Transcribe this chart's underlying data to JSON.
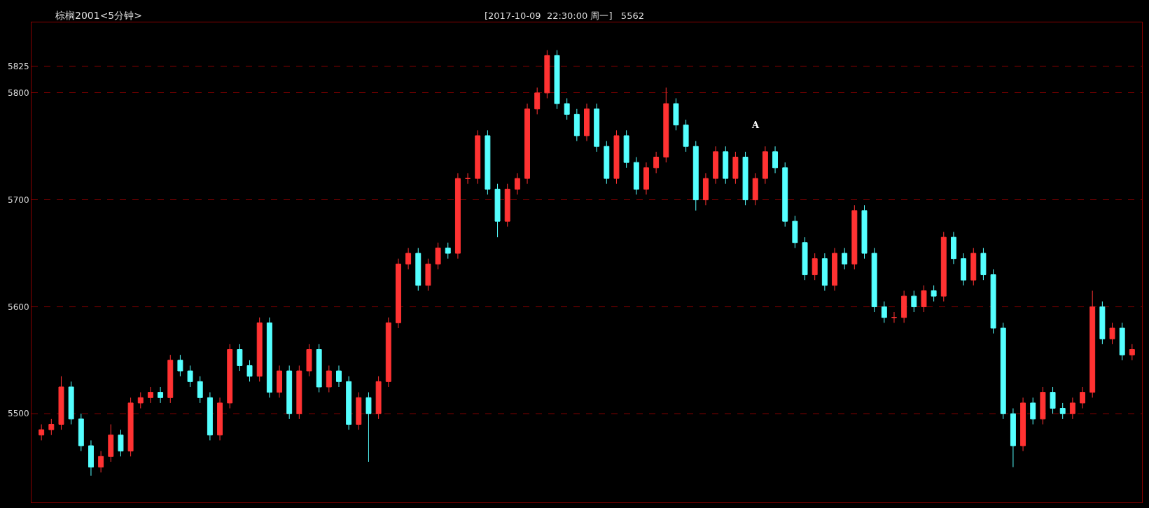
{
  "chart_data": {
    "type": "candlestick",
    "title": "棕榈2001<5分钟>",
    "subtitle": "[2017-10-09  22:30:00 周一]   5562",
    "annotations": [
      "A"
    ],
    "categories": [
      null,
      null,
      null,
      null,
      null,
      null,
      null,
      null,
      null,
      null,
      null,
      null,
      null,
      null,
      null,
      null,
      null,
      null,
      null,
      null,
      null,
      null,
      null,
      null,
      null,
      null,
      null,
      null,
      null,
      null,
      null,
      null,
      null,
      null,
      null,
      null,
      null,
      null,
      null,
      null,
      null,
      null,
      null,
      null,
      null,
      null,
      null,
      null,
      null,
      null,
      null,
      null,
      null,
      null,
      null,
      null,
      null,
      null,
      null,
      null,
      null,
      null,
      null,
      null,
      null,
      null,
      null,
      null,
      null,
      null,
      null,
      null,
      null,
      null,
      null,
      null,
      null,
      null,
      null,
      null,
      null,
      null,
      null,
      null,
      null,
      null,
      null,
      null,
      null,
      null,
      null,
      null,
      null,
      null,
      null,
      null,
      null,
      null,
      null,
      null,
      null,
      null,
      null,
      null,
      null,
      null,
      null,
      null,
      null,
      null,
      null
    ],
    "colors": [
      "#ff3232",
      "#ff3232",
      "#ff3232",
      "#54ffff",
      "#54ffff",
      "#54ffff",
      "#ff3232",
      "#ff3232",
      "#54ffff",
      "#ff3232",
      "#ff3232",
      "#ff3232",
      "#54ffff",
      "#ff3232",
      "#54ffff",
      "#54ffff",
      "#54ffff",
      "#54ffff",
      "#ff3232",
      "#ff3232",
      "#54ffff",
      "#54ffff",
      "#ff3232",
      "#54ffff",
      "#ff3232",
      "#54ffff",
      "#ff3232",
      "#ff3232",
      "#54ffff",
      "#ff3232",
      "#54ffff",
      "#54ffff",
      "#ff3232",
      "#54ffff",
      "#ff3232",
      "#ff3232",
      "#ff3232",
      "#ff3232",
      "#54ffff",
      "#ff3232",
      "#ff3232",
      "#54ffff",
      "#ff3232",
      "#ff3232",
      "#ff3232",
      "#54ffff",
      "#54ffff",
      "#ff3232",
      "#ff3232",
      "#ff3232",
      "#ff3232",
      "#ff3232",
      "#54ffff",
      "#54ffff",
      "#54ffff",
      "#ff3232",
      "#54ffff",
      "#54ffff",
      "#ff3232",
      "#54ffff",
      "#54ffff",
      "#ff3232",
      "#ff3232",
      "#ff3232",
      "#54ffff",
      "#54ffff",
      "#54ffff",
      "#ff3232",
      "#ff3232",
      "#54ffff",
      "#ff3232",
      "#54ffff",
      "#ff3232",
      "#ff3232",
      "#54ffff",
      "#54ffff",
      "#54ffff",
      "#54ffff",
      "#ff3232",
      "#54ffff",
      "#ff3232",
      "#54ffff",
      "#ff3232",
      "#54ffff",
      "#54ffff",
      "#54ffff",
      "#ff3232",
      "#ff3232",
      "#54ffff",
      "#ff3232",
      "#54ffff",
      "#ff3232",
      "#54ffff",
      "#54ffff",
      "#ff3232",
      "#54ffff",
      "#54ffff",
      "#54ffff",
      "#54ffff",
      "#ff3232",
      "#54ffff",
      "#ff3232",
      "#54ffff",
      "#54ffff",
      "#ff3232",
      "#ff3232",
      "#ff3232",
      "#54ffff",
      "#ff3232",
      "#54ffff",
      "#ff3232"
    ],
    "ohlc": [
      [
        5480,
        5490,
        5475,
        5485
      ],
      [
        5485,
        5495,
        5480,
        5490
      ],
      [
        5490,
        5535,
        5485,
        5525
      ],
      [
        5525,
        5530,
        5490,
        5495
      ],
      [
        5495,
        5500,
        5465,
        5470
      ],
      [
        5470,
        5475,
        5442,
        5450
      ],
      [
        5450,
        5465,
        5445,
        5460
      ],
      [
        5460,
        5490,
        5455,
        5480
      ],
      [
        5480,
        5485,
        5460,
        5465
      ],
      [
        5465,
        5515,
        5460,
        5510
      ],
      [
        5510,
        5520,
        5505,
        5515
      ],
      [
        5515,
        5525,
        5510,
        5520
      ],
      [
        5520,
        5525,
        5510,
        5515
      ],
      [
        5515,
        5555,
        5510,
        5550
      ],
      [
        5550,
        5555,
        5535,
        5540
      ],
      [
        5540,
        5545,
        5525,
        5530
      ],
      [
        5530,
        5535,
        5510,
        5515
      ],
      [
        5515,
        5520,
        5475,
        5480
      ],
      [
        5480,
        5515,
        5475,
        5510
      ],
      [
        5510,
        5565,
        5505,
        5560
      ],
      [
        5560,
        5565,
        5540,
        5545
      ],
      [
        5545,
        5550,
        5530,
        5535
      ],
      [
        5535,
        5590,
        5530,
        5585
      ],
      [
        5585,
        5590,
        5515,
        5520
      ],
      [
        5520,
        5545,
        5515,
        5540
      ],
      [
        5540,
        5545,
        5495,
        5500
      ],
      [
        5500,
        5545,
        5495,
        5540
      ],
      [
        5540,
        5565,
        5535,
        5560
      ],
      [
        5560,
        5565,
        5520,
        5525
      ],
      [
        5525,
        5545,
        5520,
        5540
      ],
      [
        5540,
        5545,
        5525,
        5530
      ],
      [
        5530,
        5535,
        5485,
        5490
      ],
      [
        5490,
        5520,
        5485,
        5515
      ],
      [
        5515,
        5520,
        5455,
        5500
      ],
      [
        5500,
        5535,
        5495,
        5530
      ],
      [
        5530,
        5590,
        5525,
        5585
      ],
      [
        5585,
        5645,
        5580,
        5640
      ],
      [
        5640,
        5655,
        5635,
        5650
      ],
      [
        5650,
        5655,
        5615,
        5620
      ],
      [
        5620,
        5645,
        5615,
        5640
      ],
      [
        5640,
        5660,
        5635,
        5655
      ],
      [
        5655,
        5660,
        5645,
        5650
      ],
      [
        5650,
        5725,
        5645,
        5720
      ],
      [
        5720,
        5725,
        5715,
        5720
      ],
      [
        5720,
        5765,
        5715,
        5760
      ],
      [
        5760,
        5765,
        5705,
        5710
      ],
      [
        5710,
        5715,
        5665,
        5680
      ],
      [
        5680,
        5715,
        5675,
        5710
      ],
      [
        5710,
        5725,
        5705,
        5720
      ],
      [
        5720,
        5790,
        5715,
        5785
      ],
      [
        5785,
        5805,
        5780,
        5800
      ],
      [
        5800,
        5840,
        5795,
        5835
      ],
      [
        5835,
        5840,
        5785,
        5790
      ],
      [
        5790,
        5795,
        5775,
        5780
      ],
      [
        5780,
        5785,
        5755,
        5760
      ],
      [
        5760,
        5790,
        5755,
        5785
      ],
      [
        5785,
        5790,
        5745,
        5750
      ],
      [
        5750,
        5755,
        5715,
        5720
      ],
      [
        5720,
        5765,
        5715,
        5760
      ],
      [
        5760,
        5765,
        5730,
        5735
      ],
      [
        5735,
        5740,
        5705,
        5710
      ],
      [
        5710,
        5735,
        5705,
        5730
      ],
      [
        5730,
        5745,
        5725,
        5740
      ],
      [
        5740,
        5805,
        5735,
        5790
      ],
      [
        5790,
        5795,
        5765,
        5770
      ],
      [
        5770,
        5775,
        5745,
        5750
      ],
      [
        5750,
        5755,
        5690,
        5700
      ],
      [
        5700,
        5725,
        5695,
        5720
      ],
      [
        5720,
        5750,
        5715,
        5745
      ],
      [
        5745,
        5750,
        5715,
        5720
      ],
      [
        5720,
        5745,
        5715,
        5740
      ],
      [
        5740,
        5745,
        5695,
        5700
      ],
      [
        5700,
        5725,
        5695,
        5720
      ],
      [
        5720,
        5750,
        5715,
        5745
      ],
      [
        5745,
        5750,
        5725,
        5730
      ],
      [
        5730,
        5735,
        5675,
        5680
      ],
      [
        5680,
        5685,
        5655,
        5660
      ],
      [
        5660,
        5665,
        5625,
        5630
      ],
      [
        5630,
        5650,
        5625,
        5645
      ],
      [
        5645,
        5650,
        5615,
        5620
      ],
      [
        5620,
        5655,
        5615,
        5650
      ],
      [
        5650,
        5655,
        5635,
        5640
      ],
      [
        5640,
        5695,
        5635,
        5690
      ],
      [
        5690,
        5695,
        5645,
        5650
      ],
      [
        5650,
        5655,
        5595,
        5600
      ],
      [
        5600,
        5605,
        5585,
        5590
      ],
      [
        5590,
        5595,
        5585,
        5590
      ],
      [
        5590,
        5615,
        5585,
        5610
      ],
      [
        5610,
        5615,
        5595,
        5600
      ],
      [
        5600,
        5620,
        5595,
        5615
      ],
      [
        5615,
        5620,
        5605,
        5610
      ],
      [
        5610,
        5670,
        5605,
        5665
      ],
      [
        5665,
        5670,
        5640,
        5645
      ],
      [
        5645,
        5650,
        5620,
        5625
      ],
      [
        5625,
        5655,
        5620,
        5650
      ],
      [
        5650,
        5655,
        5625,
        5630
      ],
      [
        5630,
        5635,
        5575,
        5580
      ],
      [
        5580,
        5585,
        5495,
        5500
      ],
      [
        5500,
        5505,
        5450,
        5470
      ],
      [
        5470,
        5515,
        5465,
        5510
      ],
      [
        5510,
        5515,
        5490,
        5495
      ],
      [
        5495,
        5525,
        5490,
        5520
      ],
      [
        5520,
        5525,
        5500,
        5505
      ],
      [
        5505,
        5510,
        5495,
        5500
      ],
      [
        5500,
        5515,
        5495,
        5510
      ],
      [
        5510,
        5525,
        5505,
        5520
      ],
      [
        5520,
        5615,
        5515,
        5600
      ],
      [
        5600,
        5605,
        5565,
        5570
      ],
      [
        5570,
        5585,
        5565,
        5580
      ],
      [
        5580,
        5585,
        5550,
        5555
      ],
      [
        5555,
        5565,
        5550,
        5560
      ]
    ],
    "ylim": [
      5417,
      5866
    ],
    "yticks": [
      5500,
      5600,
      5700,
      5800,
      5825
    ],
    "grid": "y",
    "tick_labels": "y"
  }
}
